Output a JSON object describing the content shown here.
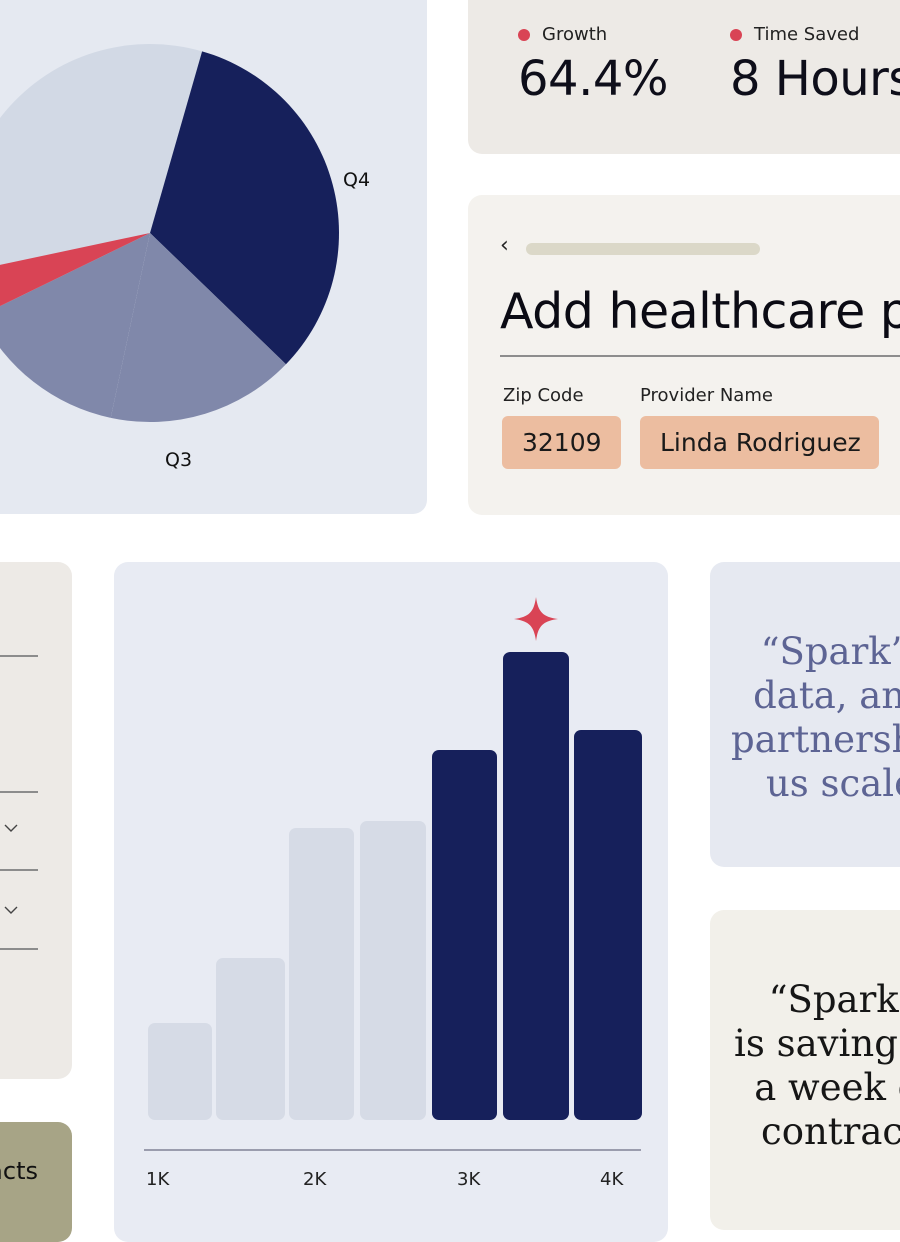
{
  "pie_chart": {
    "slice_colors": [
      "#d2d9e5",
      "#16205b",
      "#8088aa",
      "#d94455"
    ],
    "labels": [
      "Q4",
      "Q3"
    ]
  },
  "stats": [
    {
      "label": "Growth",
      "value": "64.4%"
    },
    {
      "label": "Time Saved",
      "value": "8 Hours"
    }
  ],
  "form": {
    "back_icon": "‹",
    "title": "Add healthcare provider",
    "fields": [
      {
        "label": "Zip Code",
        "value": "32109"
      },
      {
        "label": "Provider Name",
        "value": "Linda Rodriguez"
      }
    ]
  },
  "left_panel": {
    "chevron_icon": "chevron-down-icon"
  },
  "green_card": {
    "label": "Contracts"
  },
  "chart_data": {
    "type": "bar",
    "xlabel": "",
    "ylabel": "",
    "x_ticks": [
      "1K",
      "2K",
      "3K",
      "4K"
    ],
    "values": [
      15,
      25,
      45,
      46,
      57,
      72,
      60
    ],
    "highlight": [
      false,
      false,
      false,
      false,
      true,
      true,
      true
    ],
    "ylim": [
      0,
      80
    ],
    "colors": {
      "light": "#d6dbe6",
      "dark": "#16205b",
      "star": "#d94455"
    }
  },
  "quotes": [
    {
      "lines": [
        "“Spark’s",
        "data, and",
        "partnership",
        "us scale"
      ]
    },
    {
      "lines": [
        "“Spark’s",
        "is saving me",
        "a week on",
        "contracts"
      ]
    }
  ]
}
